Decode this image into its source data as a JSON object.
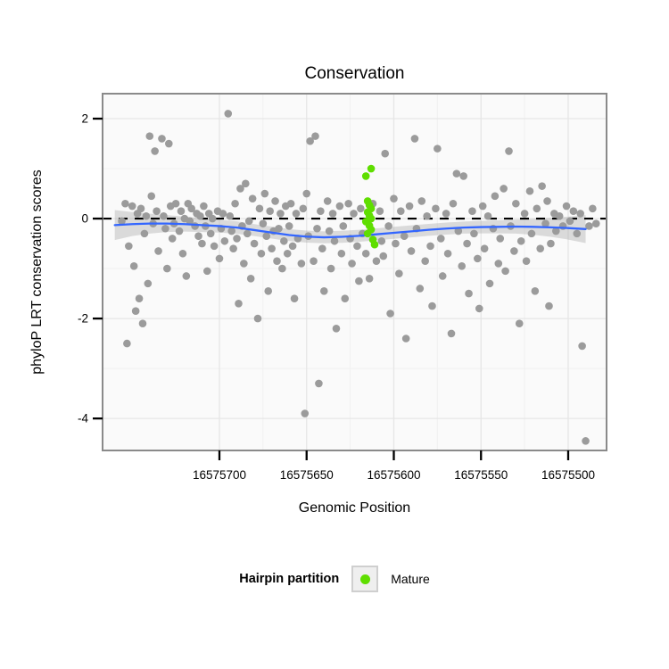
{
  "legend": {
    "title": "Hairpin partition",
    "items": [
      {
        "label": "Mature",
        "color": "#5FDE00"
      }
    ]
  },
  "chart_data": {
    "type": "scatter",
    "title": "Conservation",
    "xlabel": "Genomic Position",
    "ylabel": "phyloP LRT conservation scores",
    "x_axis_reversed": true,
    "xlim": [
      16575767,
      16575478
    ],
    "ylim": [
      -4.64,
      2.5
    ],
    "xticks": [
      16575700,
      16575650,
      16575600,
      16575550,
      16575500
    ],
    "yticks": [
      2,
      0,
      -2,
      -4
    ],
    "grid": true,
    "reference_line_y": 0,
    "legend_position": "bottom",
    "colors": {
      "panel_bg": "#FAFAFA",
      "grid_major": "#e6e6e6",
      "grid_minor": "#f1f1f1",
      "border": "#8A8A8A",
      "other_points": "#9B9B9B",
      "mature_points": "#5FDE00",
      "smooth_line": "#3366FF",
      "band": "#999999",
      "reference_line": "#000000"
    },
    "series": [
      {
        "name": "Hairpin",
        "color": "#9B9B9B",
        "points": [
          [
            16575756,
            -0.05
          ],
          [
            16575754,
            0.3
          ],
          [
            16575753,
            -2.5
          ],
          [
            16575752,
            -0.55
          ],
          [
            16575750,
            0.25
          ],
          [
            16575749,
            -0.95
          ],
          [
            16575748,
            -1.85
          ],
          [
            16575747,
            0.1
          ],
          [
            16575746,
            -1.6
          ],
          [
            16575745,
            0.2
          ],
          [
            16575744,
            -2.1
          ],
          [
            16575743,
            -0.3
          ],
          [
            16575742,
            0.05
          ],
          [
            16575741,
            -1.3
          ],
          [
            16575740,
            1.65
          ],
          [
            16575739,
            0.45
          ],
          [
            16575738,
            -0.1
          ],
          [
            16575737,
            1.35
          ],
          [
            16575736,
            0.15
          ],
          [
            16575735,
            -0.65
          ],
          [
            16575733,
            1.6
          ],
          [
            16575732,
            0.05
          ],
          [
            16575731,
            -0.2
          ],
          [
            16575730,
            -1.0
          ],
          [
            16575729,
            1.5
          ],
          [
            16575728,
            0.25
          ],
          [
            16575727,
            -0.4
          ],
          [
            16575726,
            -0.1
          ],
          [
            16575725,
            0.3
          ],
          [
            16575723,
            -0.25
          ],
          [
            16575722,
            0.15
          ],
          [
            16575721,
            -0.7
          ],
          [
            16575720,
            0.0
          ],
          [
            16575719,
            -1.15
          ],
          [
            16575718,
            0.3
          ],
          [
            16575717,
            -0.05
          ],
          [
            16575716,
            0.2
          ],
          [
            16575714,
            -0.15
          ],
          [
            16575713,
            0.1
          ],
          [
            16575712,
            -0.35
          ],
          [
            16575711,
            0.05
          ],
          [
            16575710,
            -0.5
          ],
          [
            16575709,
            0.25
          ],
          [
            16575708,
            -0.15
          ],
          [
            16575707,
            -1.05
          ],
          [
            16575706,
            0.1
          ],
          [
            16575705,
            -0.3
          ],
          [
            16575704,
            0.0
          ],
          [
            16575703,
            -0.55
          ],
          [
            16575701,
            0.15
          ],
          [
            16575700,
            -0.8
          ],
          [
            16575699,
            -0.2
          ],
          [
            16575698,
            0.1
          ],
          [
            16575697,
            -0.45
          ],
          [
            16575695,
            2.1
          ],
          [
            16575694,
            0.05
          ],
          [
            16575693,
            -0.25
          ],
          [
            16575692,
            -0.6
          ],
          [
            16575691,
            0.3
          ],
          [
            16575690,
            -0.4
          ],
          [
            16575689,
            -1.7
          ],
          [
            16575688,
            0.6
          ],
          [
            16575687,
            -0.15
          ],
          [
            16575686,
            -0.9
          ],
          [
            16575685,
            0.7
          ],
          [
            16575684,
            -0.3
          ],
          [
            16575683,
            -0.05
          ],
          [
            16575682,
            -1.2
          ],
          [
            16575681,
            0.4
          ],
          [
            16575680,
            -0.5
          ],
          [
            16575678,
            -2.0
          ],
          [
            16575677,
            0.2
          ],
          [
            16575676,
            -0.7
          ],
          [
            16575675,
            -0.1
          ],
          [
            16575674,
            0.5
          ],
          [
            16575673,
            -0.35
          ],
          [
            16575672,
            -1.45
          ],
          [
            16575671,
            0.15
          ],
          [
            16575670,
            -0.6
          ],
          [
            16575669,
            -0.25
          ],
          [
            16575668,
            0.35
          ],
          [
            16575667,
            -0.85
          ],
          [
            16575666,
            -0.2
          ],
          [
            16575665,
            0.1
          ],
          [
            16575664,
            -1.0
          ],
          [
            16575663,
            -0.45
          ],
          [
            16575662,
            0.25
          ],
          [
            16575661,
            -0.7
          ],
          [
            16575660,
            -0.15
          ],
          [
            16575659,
            0.3
          ],
          [
            16575658,
            -0.55
          ],
          [
            16575657,
            -1.6
          ],
          [
            16575656,
            0.1
          ],
          [
            16575655,
            -0.4
          ],
          [
            16575653,
            -0.9
          ],
          [
            16575652,
            0.2
          ],
          [
            16575651,
            -3.9
          ],
          [
            16575650,
            0.5
          ],
          [
            16575649,
            -0.35
          ],
          [
            16575648,
            1.55
          ],
          [
            16575646,
            -0.85
          ],
          [
            16575645,
            1.65
          ],
          [
            16575644,
            -0.2
          ],
          [
            16575643,
            -3.3
          ],
          [
            16575642,
            0.15
          ],
          [
            16575641,
            -0.6
          ],
          [
            16575640,
            -1.45
          ],
          [
            16575638,
            0.35
          ],
          [
            16575637,
            -0.25
          ],
          [
            16575636,
            -1.0
          ],
          [
            16575635,
            0.1
          ],
          [
            16575634,
            -0.45
          ],
          [
            16575633,
            -2.2
          ],
          [
            16575631,
            0.25
          ],
          [
            16575630,
            -0.7
          ],
          [
            16575629,
            -0.15
          ],
          [
            16575628,
            -1.6
          ],
          [
            16575626,
            0.3
          ],
          [
            16575625,
            -0.4
          ],
          [
            16575624,
            -0.9
          ],
          [
            16575623,
            0.1
          ],
          [
            16575621,
            -0.55
          ],
          [
            16575620,
            -1.25
          ],
          [
            16575619,
            0.2
          ],
          [
            16575618,
            -0.3
          ],
          [
            16575616,
            -0.7
          ],
          [
            16575614,
            -1.2
          ],
          [
            16575612,
            0.3
          ],
          [
            16575610,
            -0.85
          ],
          [
            16575608,
            0.15
          ],
          [
            16575607,
            -0.45
          ],
          [
            16575606,
            -0.75
          ],
          [
            16575605,
            1.3
          ],
          [
            16575603,
            -0.15
          ],
          [
            16575602,
            -1.9
          ],
          [
            16575600,
            0.4
          ],
          [
            16575599,
            -0.5
          ],
          [
            16575597,
            -1.1
          ],
          [
            16575596,
            0.15
          ],
          [
            16575594,
            -0.35
          ],
          [
            16575593,
            -2.4
          ],
          [
            16575591,
            0.25
          ],
          [
            16575590,
            -0.65
          ],
          [
            16575588,
            1.6
          ],
          [
            16575587,
            -0.2
          ],
          [
            16575585,
            -1.4
          ],
          [
            16575584,
            0.35
          ],
          [
            16575582,
            -0.85
          ],
          [
            16575581,
            0.05
          ],
          [
            16575579,
            -0.55
          ],
          [
            16575578,
            -1.75
          ],
          [
            16575576,
            0.2
          ],
          [
            16575575,
            1.4
          ],
          [
            16575573,
            -0.4
          ],
          [
            16575572,
            -1.15
          ],
          [
            16575570,
            0.1
          ],
          [
            16575569,
            -0.7
          ],
          [
            16575567,
            -2.3
          ],
          [
            16575566,
            0.3
          ],
          [
            16575564,
            0.9
          ],
          [
            16575563,
            -0.25
          ],
          [
            16575561,
            -0.95
          ],
          [
            16575560,
            0.85
          ],
          [
            16575558,
            -0.5
          ],
          [
            16575557,
            -1.5
          ],
          [
            16575555,
            0.15
          ],
          [
            16575554,
            -0.3
          ],
          [
            16575552,
            -0.8
          ],
          [
            16575551,
            -1.8
          ],
          [
            16575549,
            0.25
          ],
          [
            16575548,
            -0.6
          ],
          [
            16575546,
            0.05
          ],
          [
            16575545,
            -1.3
          ],
          [
            16575543,
            -0.2
          ],
          [
            16575542,
            0.45
          ],
          [
            16575540,
            -0.9
          ],
          [
            16575539,
            -0.4
          ],
          [
            16575537,
            0.6
          ],
          [
            16575536,
            -1.05
          ],
          [
            16575534,
            1.35
          ],
          [
            16575533,
            -0.15
          ],
          [
            16575531,
            -0.65
          ],
          [
            16575530,
            0.3
          ],
          [
            16575528,
            -2.1
          ],
          [
            16575527,
            -0.45
          ],
          [
            16575525,
            0.1
          ],
          [
            16575524,
            -0.85
          ],
          [
            16575522,
            0.55
          ],
          [
            16575521,
            -0.3
          ],
          [
            16575519,
            -1.45
          ],
          [
            16575518,
            0.2
          ],
          [
            16575516,
            -0.6
          ],
          [
            16575515,
            0.65
          ],
          [
            16575513,
            -0.1
          ],
          [
            16575512,
            0.35
          ],
          [
            16575511,
            -1.75
          ],
          [
            16575510,
            -0.5
          ],
          [
            16575508,
            0.1
          ],
          [
            16575507,
            -0.25
          ],
          [
            16575505,
            0.05
          ],
          [
            16575503,
            -0.15
          ],
          [
            16575501,
            0.25
          ],
          [
            16575499,
            -0.05
          ],
          [
            16575497,
            0.15
          ],
          [
            16575495,
            -0.3
          ],
          [
            16575493,
            0.1
          ],
          [
            16575492,
            -2.55
          ],
          [
            16575490,
            -4.45
          ],
          [
            16575488,
            -0.15
          ],
          [
            16575486,
            0.2
          ],
          [
            16575484,
            -0.1
          ]
        ]
      },
      {
        "name": "Mature",
        "color": "#5FDE00",
        "points": [
          [
            16575613,
            1.0
          ],
          [
            16575616,
            0.85
          ],
          [
            16575615,
            0.35
          ],
          [
            16575614,
            0.27
          ],
          [
            16575613,
            0.2
          ],
          [
            16575615,
            0.13
          ],
          [
            16575614,
            0.06
          ],
          [
            16575613,
            0.0
          ],
          [
            16575616,
            -0.06
          ],
          [
            16575614,
            -0.14
          ],
          [
            16575613,
            -0.22
          ],
          [
            16575615,
            -0.3
          ],
          [
            16575612,
            -0.42
          ],
          [
            16575611,
            -0.52
          ]
        ]
      }
    ],
    "smooth": {
      "x": [
        16575760,
        16575750,
        16575740,
        16575730,
        16575720,
        16575710,
        16575700,
        16575690,
        16575680,
        16575670,
        16575660,
        16575650,
        16575640,
        16575630,
        16575620,
        16575610,
        16575600,
        16575590,
        16575580,
        16575570,
        16575560,
        16575550,
        16575540,
        16575530,
        16575520,
        16575510,
        16575500,
        16575490
      ],
      "y": [
        -0.13,
        -0.11,
        -0.1,
        -0.1,
        -0.11,
        -0.13,
        -0.15,
        -0.18,
        -0.23,
        -0.28,
        -0.33,
        -0.36,
        -0.375,
        -0.365,
        -0.345,
        -0.315,
        -0.285,
        -0.255,
        -0.225,
        -0.2,
        -0.18,
        -0.17,
        -0.165,
        -0.16,
        -0.165,
        -0.175,
        -0.19,
        -0.21
      ],
      "ymin": [
        -0.43,
        -0.35,
        -0.3,
        -0.27,
        -0.26,
        -0.27,
        -0.28,
        -0.305,
        -0.35,
        -0.4,
        -0.45,
        -0.48,
        -0.495,
        -0.485,
        -0.465,
        -0.435,
        -0.405,
        -0.375,
        -0.345,
        -0.32,
        -0.3,
        -0.295,
        -0.295,
        -0.3,
        -0.325,
        -0.365,
        -0.42,
        -0.49
      ],
      "ymax": [
        0.17,
        0.13,
        0.1,
        0.07,
        0.04,
        0.01,
        -0.02,
        -0.055,
        -0.11,
        -0.16,
        -0.21,
        -0.24,
        -0.255,
        -0.245,
        -0.225,
        -0.195,
        -0.165,
        -0.135,
        -0.105,
        -0.08,
        -0.06,
        -0.045,
        -0.035,
        -0.02,
        -0.005,
        0.015,
        0.04,
        0.07
      ]
    }
  }
}
